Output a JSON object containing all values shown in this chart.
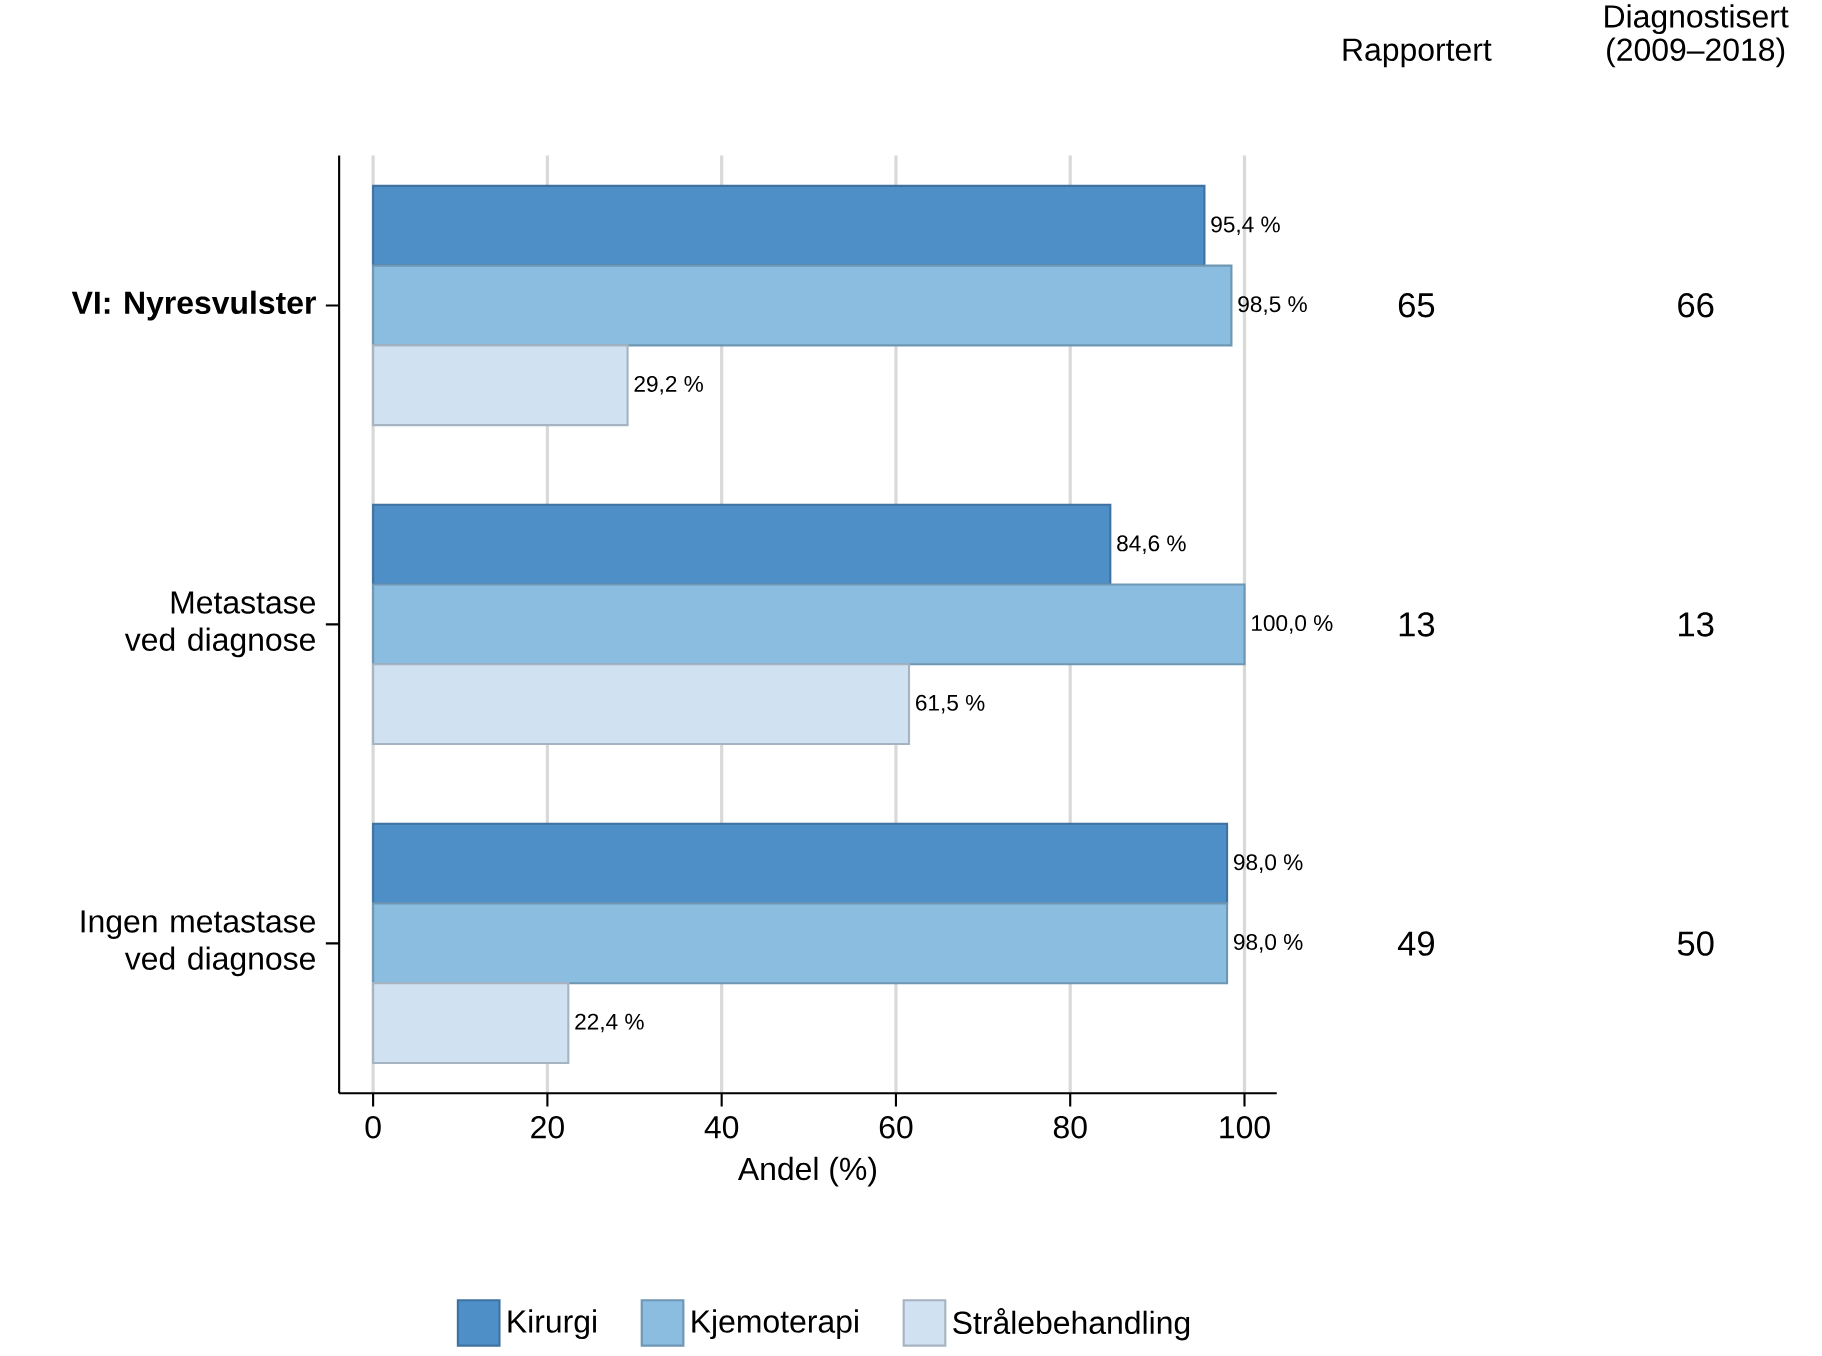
{
  "chart_data": [
    {
      "type": "bar",
      "orientation": "horizontal",
      "categories": [
        "VI: Nyresvulster",
        "Metastase ved diagnose",
        "Ingen metastase ved diagnose"
      ],
      "series": [
        {
          "name": "Kirurgi",
          "color": "#4f8fc8",
          "values": [
            95.4,
            84.6,
            98.0
          ],
          "value_labels": [
            "95,4 %",
            "84,6 %",
            "98,0 %"
          ]
        },
        {
          "name": "Kjemoterapi",
          "color": "#8bbde0",
          "values": [
            98.5,
            100.0,
            98.0
          ],
          "value_labels": [
            "98,5 %",
            "100,0 %",
            "98,0 %"
          ]
        },
        {
          "name": "Strålebehandling",
          "color": "#d0e2f2",
          "values": [
            29.2,
            61.5,
            22.4
          ],
          "value_labels": [
            "29,2 %",
            "61,5 %",
            "22,4 %"
          ]
        }
      ],
      "xlabel": "Andel (%)",
      "xlim": [
        -3.9,
        103.7
      ],
      "xticks": [
        0,
        20,
        40,
        60,
        80,
        100
      ],
      "grid": "x",
      "legend": "bottom"
    },
    {
      "type": "other",
      "annotations": [
        "Rapportert",
        "Diagnostisert (2009–2018)",
        "65",
        "66",
        "13",
        "13",
        "49",
        "50"
      ]
    }
  ]
}
